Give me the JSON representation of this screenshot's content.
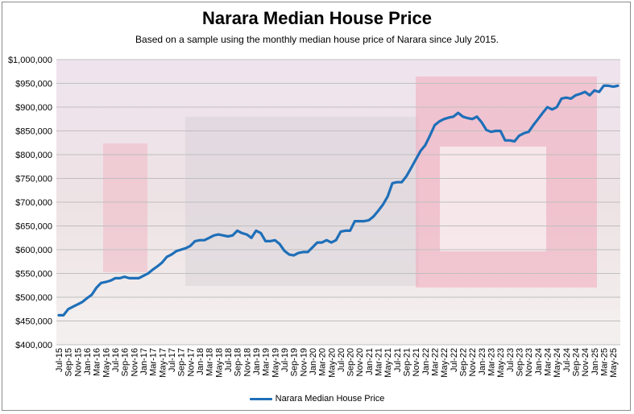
{
  "title": "Narara Median House Price",
  "subtitle": "Based on a sample using the monthly median house price of Narara since July 2015.",
  "colors": {
    "line": "#1f6fb8",
    "grid": "#bfbfbf",
    "background_tint": "#d9c3cf"
  },
  "chart_data": {
    "type": "line",
    "title": "Narara Median House Price",
    "subtitle": "Based on a sample using the monthly median house price of Narara since July 2015.",
    "ylim": [
      400000,
      1000000
    ],
    "y_ticks": [
      400000,
      450000,
      500000,
      550000,
      600000,
      650000,
      700000,
      750000,
      800000,
      850000,
      900000,
      950000,
      1000000
    ],
    "y_tick_labels": [
      "$400,000",
      "$450,000",
      "$500,000",
      "$550,000",
      "$600,000",
      "$650,000",
      "$700,000",
      "$750,000",
      "$800,000",
      "$850,000",
      "$900,000",
      "$950,000",
      "$1,000,000"
    ],
    "x_tick_labels": [
      "Jul-15",
      "Sep-15",
      "Nov-15",
      "Jan-16",
      "Mar-16",
      "May-16",
      "Jul-16",
      "Sep-16",
      "Nov-16",
      "Jan-17",
      "Mar-17",
      "May-17",
      "Jul-17",
      "Sep-17",
      "Nov-17",
      "Jan-18",
      "Mar-18",
      "May-18",
      "Jul-18",
      "Sep-18",
      "Nov-18",
      "Jan-19",
      "Mar-19",
      "May-19",
      "Jul-19",
      "Sep-19",
      "Nov-19",
      "Jan-20",
      "Mar-20",
      "May-20",
      "Jul-20",
      "Sep-20",
      "Nov-20",
      "Jan-21",
      "Mar-21",
      "May-21",
      "Jul-21",
      "Sep-21",
      "Nov-21",
      "Jan-22",
      "Mar-22",
      "May-22",
      "Jul-22",
      "Sep-22",
      "Nov-22",
      "Jan-23",
      "Mar-23",
      "May-23",
      "Jul-23",
      "Sep-23",
      "Nov-23",
      "Jan-24",
      "Mar-24",
      "May-24",
      "Jul-24",
      "Sep-24",
      "Nov-24",
      "Jan-25",
      "Mar-25",
      "May-25"
    ],
    "grid": true,
    "legend_position": "bottom",
    "series": [
      {
        "name": "Narara Median House Price",
        "x": [
          "Jul-15",
          "Aug-15",
          "Sep-15",
          "Oct-15",
          "Nov-15",
          "Dec-15",
          "Jan-16",
          "Feb-16",
          "Mar-16",
          "Apr-16",
          "May-16",
          "Jun-16",
          "Jul-16",
          "Aug-16",
          "Sep-16",
          "Oct-16",
          "Nov-16",
          "Dec-16",
          "Jan-17",
          "Feb-17",
          "Mar-17",
          "Apr-17",
          "May-17",
          "Jun-17",
          "Jul-17",
          "Aug-17",
          "Sep-17",
          "Oct-17",
          "Nov-17",
          "Dec-17",
          "Jan-18",
          "Feb-18",
          "Mar-18",
          "Apr-18",
          "May-18",
          "Jun-18",
          "Jul-18",
          "Aug-18",
          "Sep-18",
          "Oct-18",
          "Nov-18",
          "Dec-18",
          "Jan-19",
          "Feb-19",
          "Mar-19",
          "Apr-19",
          "May-19",
          "Jun-19",
          "Jul-19",
          "Aug-19",
          "Sep-19",
          "Oct-19",
          "Nov-19",
          "Dec-19",
          "Jan-20",
          "Feb-20",
          "Mar-20",
          "Apr-20",
          "May-20",
          "Jun-20",
          "Jul-20",
          "Aug-20",
          "Sep-20",
          "Oct-20",
          "Nov-20",
          "Dec-20",
          "Jan-21",
          "Feb-21",
          "Mar-21",
          "Apr-21",
          "May-21",
          "Jun-21",
          "Jul-21",
          "Aug-21",
          "Sep-21",
          "Oct-21",
          "Nov-21",
          "Dec-21",
          "Jan-22",
          "Feb-22",
          "Mar-22",
          "Apr-22",
          "May-22",
          "Jun-22",
          "Jul-22",
          "Aug-22",
          "Sep-22",
          "Oct-22",
          "Nov-22",
          "Dec-22",
          "Jan-23",
          "Feb-23",
          "Mar-23",
          "Apr-23",
          "May-23",
          "Jun-23",
          "Jul-23",
          "Aug-23",
          "Sep-23",
          "Oct-23",
          "Nov-23",
          "Dec-23",
          "Jan-24",
          "Feb-24",
          "Mar-24",
          "Apr-24",
          "May-24",
          "Jun-24",
          "Jul-24",
          "Aug-24",
          "Sep-24",
          "Oct-24",
          "Nov-24",
          "Dec-24",
          "Jan-25",
          "Feb-25",
          "Mar-25",
          "Apr-25",
          "May-25",
          "Jun-25"
        ],
        "values": [
          462000,
          462000,
          475000,
          480000,
          485000,
          490000,
          498000,
          505000,
          520000,
          530000,
          532000,
          535000,
          540000,
          540000,
          543000,
          540000,
          540000,
          540000,
          545000,
          550000,
          558000,
          565000,
          573000,
          585000,
          590000,
          597000,
          600000,
          603000,
          608000,
          618000,
          620000,
          620000,
          625000,
          630000,
          632000,
          630000,
          628000,
          630000,
          640000,
          635000,
          632000,
          625000,
          640000,
          635000,
          618000,
          618000,
          620000,
          612000,
          598000,
          590000,
          588000,
          593000,
          595000,
          595000,
          605000,
          615000,
          615000,
          620000,
          615000,
          620000,
          638000,
          640000,
          640000,
          660000,
          660000,
          660000,
          662000,
          670000,
          682000,
          695000,
          712000,
          740000,
          742000,
          742000,
          755000,
          772000,
          790000,
          808000,
          820000,
          840000,
          862000,
          870000,
          875000,
          878000,
          880000,
          888000,
          880000,
          877000,
          875000,
          880000,
          868000,
          852000,
          848000,
          850000,
          850000,
          830000,
          830000,
          828000,
          840000,
          845000,
          848000,
          862000,
          875000,
          888000,
          900000,
          895000,
          900000,
          918000,
          920000,
          918000,
          925000,
          928000,
          932000,
          925000,
          935000,
          932000,
          945000,
          945000,
          943000,
          945000
        ]
      }
    ]
  },
  "legend": {
    "label": "Narara Median House Price"
  }
}
